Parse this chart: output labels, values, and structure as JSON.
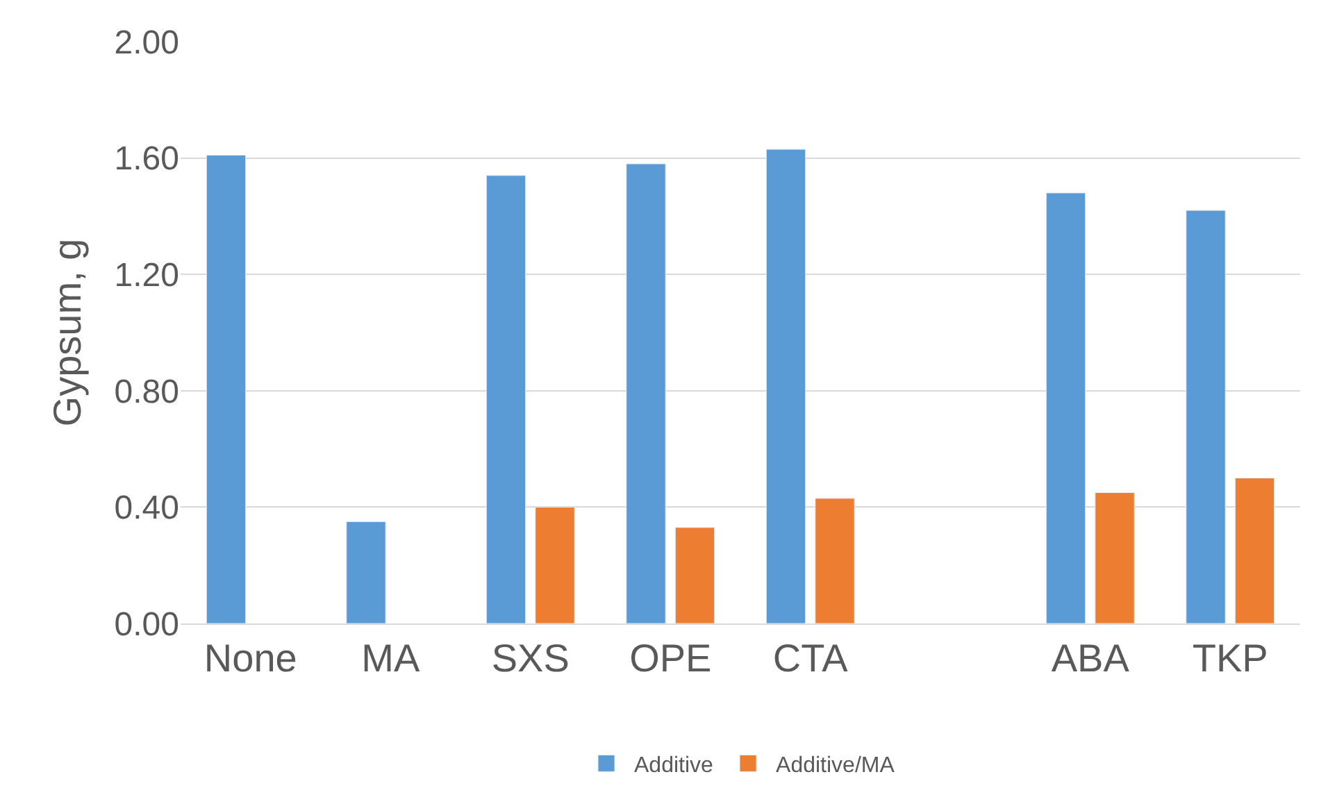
{
  "chart_data": {
    "type": "bar",
    "ylabel": "Gypsum, g",
    "categories": [
      "None",
      "MA",
      "SXS",
      "OPE",
      "CTA",
      null,
      "ABA",
      "TKP"
    ],
    "series": [
      {
        "name": "Additive",
        "color": "#5b9bd5",
        "values": [
          1.61,
          0.35,
          1.54,
          1.58,
          1.63,
          null,
          1.48,
          1.42
        ]
      },
      {
        "name": "Additive/MA",
        "color": "#ed7d31",
        "values": [
          null,
          null,
          0.4,
          0.33,
          0.43,
          null,
          0.45,
          0.5
        ]
      }
    ],
    "ylim": [
      0,
      2
    ],
    "yticks": [
      {
        "value": 0,
        "label": "0.00"
      },
      {
        "value": 0.4,
        "label": "0.40"
      },
      {
        "value": 0.8,
        "label": "0.80"
      },
      {
        "value": 1.2,
        "label": "1.20"
      },
      {
        "value": 1.6,
        "label": "1.60"
      },
      {
        "value": 2,
        "label": "2.00"
      }
    ],
    "grid": "y",
    "legend": "bottom"
  }
}
